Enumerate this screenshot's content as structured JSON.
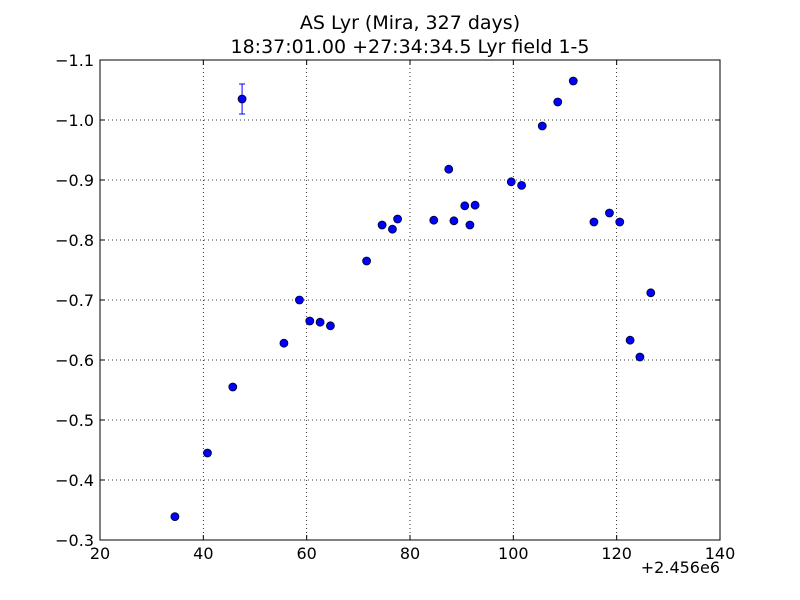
{
  "chart_data": {
    "type": "scatter",
    "title": "AS Lyr (Mira, 327 days)",
    "subtitle": "18:37:01.00 +27:34:34.5 Lyr field 1-5",
    "xlabel": "",
    "ylabel": "",
    "x_offset_label": "+2.456e6",
    "xlim": [
      20,
      140
    ],
    "ylim": [
      -0.3,
      -1.1
    ],
    "y_inverted": true,
    "grid": true,
    "x_ticks": [
      "20",
      "40",
      "60",
      "80",
      "100",
      "120",
      "140"
    ],
    "x_tick_values": [
      20,
      40,
      60,
      80,
      100,
      120,
      140
    ],
    "y_ticks": [
      "−1.1",
      "−1.0",
      "−0.9",
      "−0.8",
      "−0.7",
      "−0.6",
      "−0.5",
      "−0.4",
      "−0.3"
    ],
    "y_tick_values": [
      -1.1,
      -1.0,
      -0.9,
      -0.8,
      -0.7,
      -0.6,
      -0.5,
      -0.4,
      -0.3
    ],
    "marker_color": "#0000ff",
    "errorbar_color": "#0000ff",
    "series": [
      {
        "points": [
          {
            "x": 34.5,
            "y": -0.339
          },
          {
            "x": 40.8,
            "y": -0.445
          },
          {
            "x": 45.7,
            "y": -0.555
          },
          {
            "x": 47.5,
            "y": -1.035,
            "yerr": 0.025
          },
          {
            "x": 55.6,
            "y": -0.628
          },
          {
            "x": 58.6,
            "y": -0.7
          },
          {
            "x": 60.6,
            "y": -0.665
          },
          {
            "x": 62.6,
            "y": -0.663
          },
          {
            "x": 64.6,
            "y": -0.657
          },
          {
            "x": 71.6,
            "y": -0.765
          },
          {
            "x": 74.6,
            "y": -0.825
          },
          {
            "x": 76.6,
            "y": -0.818
          },
          {
            "x": 77.6,
            "y": -0.835
          },
          {
            "x": 84.6,
            "y": -0.833
          },
          {
            "x": 87.5,
            "y": -0.918
          },
          {
            "x": 88.5,
            "y": -0.832
          },
          {
            "x": 90.6,
            "y": -0.857
          },
          {
            "x": 91.6,
            "y": -0.825
          },
          {
            "x": 92.6,
            "y": -0.858
          },
          {
            "x": 99.6,
            "y": -0.897
          },
          {
            "x": 101.6,
            "y": -0.891
          },
          {
            "x": 105.6,
            "y": -0.99
          },
          {
            "x": 108.6,
            "y": -1.03
          },
          {
            "x": 111.6,
            "y": -1.065
          },
          {
            "x": 115.6,
            "y": -0.83
          },
          {
            "x": 118.6,
            "y": -0.845
          },
          {
            "x": 120.6,
            "y": -0.83
          },
          {
            "x": 122.6,
            "y": -0.633
          },
          {
            "x": 124.5,
            "y": -0.605
          },
          {
            "x": 126.6,
            "y": -0.712
          }
        ]
      }
    ]
  }
}
